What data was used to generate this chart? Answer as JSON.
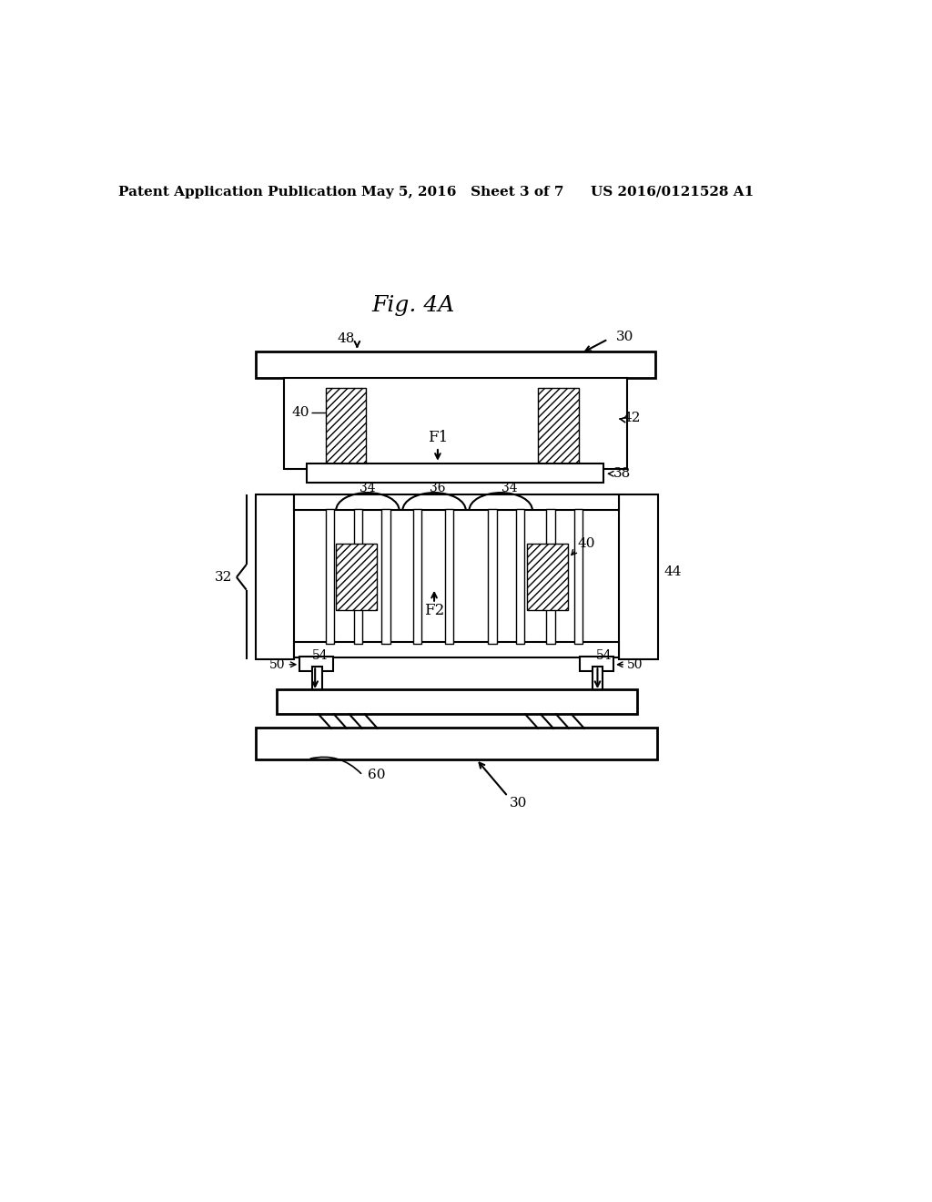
{
  "title": "Fig. 4A",
  "header_left": "Patent Application Publication",
  "header_center": "May 5, 2016   Sheet 3 of 7",
  "header_right": "US 2016/0121528 A1",
  "bg_color": "#ffffff",
  "line_color": "#000000",
  "fig_size": [
    10.24,
    13.2
  ],
  "dpi": 100
}
